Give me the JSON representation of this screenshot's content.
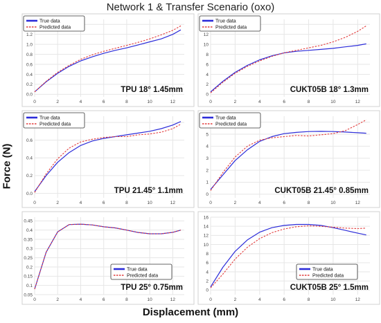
{
  "figure": {
    "title": "Network 1 & Transfer Scenario (oxo)",
    "ylabel": "Force (N)",
    "xlabel": "Displacement (mm)"
  },
  "colors": {
    "true": "#2b2bd9",
    "predicted": "#e23a3a"
  },
  "chart_data": [
    {
      "type": "line",
      "title": "TPU 18° 1.45mm",
      "xlim": [
        0,
        13
      ],
      "ylim": [
        -0.05,
        1.5
      ],
      "xticks": [
        "0",
        "2",
        "4",
        "6",
        "8",
        "10",
        "12"
      ],
      "yticks": [
        "0.0",
        "0.2",
        "0.4",
        "0.6",
        "0.8",
        "1.0",
        "1.2",
        "1.4"
      ],
      "legend": "top-left",
      "series": [
        {
          "name": "True data",
          "style": "solid",
          "x": [
            0,
            1,
            2,
            3,
            4,
            5,
            6,
            7,
            8,
            9,
            10,
            11,
            12,
            12.7
          ],
          "y": [
            0.05,
            0.25,
            0.42,
            0.56,
            0.67,
            0.75,
            0.82,
            0.88,
            0.93,
            0.99,
            1.05,
            1.11,
            1.2,
            1.29
          ]
        },
        {
          "name": "Predicted data",
          "style": "dashed",
          "x": [
            0,
            1,
            2,
            3,
            4,
            5,
            6,
            7,
            8,
            9,
            10,
            11,
            12,
            12.7
          ],
          "y": [
            0.05,
            0.26,
            0.44,
            0.58,
            0.7,
            0.79,
            0.86,
            0.92,
            0.98,
            1.04,
            1.11,
            1.19,
            1.28,
            1.37
          ]
        }
      ]
    },
    {
      "type": "line",
      "title": "CUKT05B 18° 1.3mm",
      "xlim": [
        0,
        13
      ],
      "ylim": [
        -0.5,
        15
      ],
      "xticks": [
        "0",
        "2",
        "4",
        "6",
        "8",
        "10",
        "12"
      ],
      "yticks": [
        "0",
        "2",
        "4",
        "6",
        "8",
        "10",
        "12",
        "14"
      ],
      "legend": "top-left",
      "series": [
        {
          "name": "True data",
          "style": "solid",
          "x": [
            0,
            1,
            2,
            3,
            4,
            5,
            6,
            7,
            8,
            9,
            10,
            11,
            12,
            12.7
          ],
          "y": [
            0.5,
            2.6,
            4.4,
            5.8,
            6.9,
            7.7,
            8.3,
            8.6,
            8.8,
            9.0,
            9.2,
            9.5,
            9.8,
            10.1
          ]
        },
        {
          "name": "Predicted data",
          "style": "dashed",
          "x": [
            0,
            1,
            2,
            3,
            4,
            5,
            6,
            7,
            8,
            9,
            10,
            11,
            12,
            12.7
          ],
          "y": [
            0.3,
            2.4,
            4.2,
            5.6,
            6.7,
            7.6,
            8.3,
            8.8,
            9.3,
            9.8,
            10.5,
            11.4,
            12.6,
            13.7
          ]
        }
      ]
    },
    {
      "type": "line",
      "title": "TPU 21.45° 1.1mm",
      "xlim": [
        0,
        13
      ],
      "ylim": [
        -0.05,
        0.87
      ],
      "xticks": [
        "0",
        "2",
        "4",
        "6",
        "8",
        "10",
        "12"
      ],
      "yticks": [
        "0.0",
        "0.2",
        "0.4",
        "0.6",
        "0.8"
      ],
      "legend": "top-left",
      "series": [
        {
          "name": "True data",
          "style": "solid",
          "x": [
            0,
            1,
            2,
            3,
            4,
            5,
            6,
            7,
            8,
            9,
            10,
            11,
            12,
            12.7
          ],
          "y": [
            0.02,
            0.2,
            0.35,
            0.46,
            0.54,
            0.59,
            0.62,
            0.64,
            0.66,
            0.68,
            0.7,
            0.73,
            0.77,
            0.81
          ]
        },
        {
          "name": "Predicted data",
          "style": "dashed",
          "x": [
            0,
            1,
            2,
            3,
            4,
            5,
            6,
            7,
            8,
            9,
            10,
            11,
            12,
            12.7
          ],
          "y": [
            0.01,
            0.22,
            0.39,
            0.51,
            0.58,
            0.61,
            0.63,
            0.64,
            0.64,
            0.66,
            0.67,
            0.69,
            0.73,
            0.78
          ]
        }
      ]
    },
    {
      "type": "line",
      "title": "CUKT05B 21.45° 0.85mm",
      "xlim": [
        0,
        13
      ],
      "ylim": [
        -0.3,
        6.5
      ],
      "xticks": [
        "0",
        "2",
        "4",
        "6",
        "8",
        "10",
        "12"
      ],
      "yticks": [
        "0",
        "1",
        "2",
        "3",
        "4",
        "5",
        "6"
      ],
      "legend": "top-left",
      "series": [
        {
          "name": "True data",
          "style": "solid",
          "x": [
            0,
            1,
            2,
            3,
            4,
            5,
            6,
            7,
            8,
            9,
            10,
            11,
            12,
            12.7
          ],
          "y": [
            0.4,
            1.6,
            2.8,
            3.7,
            4.4,
            4.8,
            5.05,
            5.15,
            5.22,
            5.24,
            5.22,
            5.18,
            5.12,
            5.08
          ]
        },
        {
          "name": "Predicted data",
          "style": "dashed",
          "x": [
            0,
            1,
            2,
            3,
            4,
            5,
            6,
            7,
            8,
            9,
            10,
            11,
            12,
            12.7
          ],
          "y": [
            0.3,
            1.8,
            3.1,
            4.0,
            4.5,
            4.7,
            4.8,
            4.9,
            4.85,
            4.95,
            5.05,
            5.3,
            5.8,
            6.2
          ]
        }
      ]
    },
    {
      "type": "line",
      "title": "TPU 25° 0.75mm",
      "xlim": [
        0,
        13
      ],
      "ylim": [
        0.05,
        0.47
      ],
      "xticks": [
        "0",
        "2",
        "4",
        "6",
        "8",
        "10",
        "12"
      ],
      "yticks": [
        "0.05",
        "0.1",
        "0.15",
        "0.2",
        "0.25",
        "0.3",
        "0.35",
        "0.4",
        "0.45"
      ],
      "legend": "bottom-right",
      "series": [
        {
          "name": "True data",
          "style": "solid",
          "x": [
            0,
            1,
            2,
            3,
            4,
            5,
            6,
            7,
            8,
            9,
            10,
            11,
            12,
            12.7
          ],
          "y": [
            0.08,
            0.28,
            0.39,
            0.43,
            0.432,
            0.428,
            0.418,
            0.412,
            0.4,
            0.387,
            0.38,
            0.38,
            0.388,
            0.4
          ]
        },
        {
          "name": "Predicted data",
          "style": "dashed",
          "x": [
            0,
            1,
            2,
            3,
            4,
            5,
            6,
            7,
            8,
            9,
            10,
            11,
            12,
            12.7
          ],
          "y": [
            0.08,
            0.28,
            0.39,
            0.43,
            0.432,
            0.428,
            0.418,
            0.412,
            0.4,
            0.387,
            0.38,
            0.38,
            0.388,
            0.4
          ]
        }
      ]
    },
    {
      "type": "line",
      "title": "CUKT05B 25° 1.5mm",
      "xlim": [
        0,
        13
      ],
      "ylim": [
        -1,
        16
      ],
      "xticks": [
        "0",
        "2",
        "4",
        "6",
        "8",
        "10",
        "12"
      ],
      "yticks": [
        "0",
        "2",
        "4",
        "6",
        "8",
        "10",
        "12",
        "14",
        "16"
      ],
      "legend": "bottom-right",
      "series": [
        {
          "name": "True data",
          "style": "solid",
          "x": [
            0,
            1,
            2,
            3,
            4,
            5,
            6,
            7,
            8,
            9,
            10,
            11,
            12,
            12.7
          ],
          "y": [
            0.7,
            5.0,
            8.5,
            11.0,
            12.7,
            13.7,
            14.2,
            14.4,
            14.4,
            14.2,
            13.7,
            13.1,
            12.5,
            12.1
          ]
        },
        {
          "name": "Predicted data",
          "style": "dashed",
          "x": [
            0,
            1,
            2,
            3,
            4,
            5,
            6,
            7,
            8,
            9,
            10,
            11,
            12,
            12.7
          ],
          "y": [
            0.5,
            3.5,
            6.8,
            9.4,
            11.3,
            12.6,
            13.4,
            13.9,
            14.1,
            14.0,
            13.8,
            13.6,
            13.5,
            13.6
          ]
        }
      ]
    }
  ]
}
